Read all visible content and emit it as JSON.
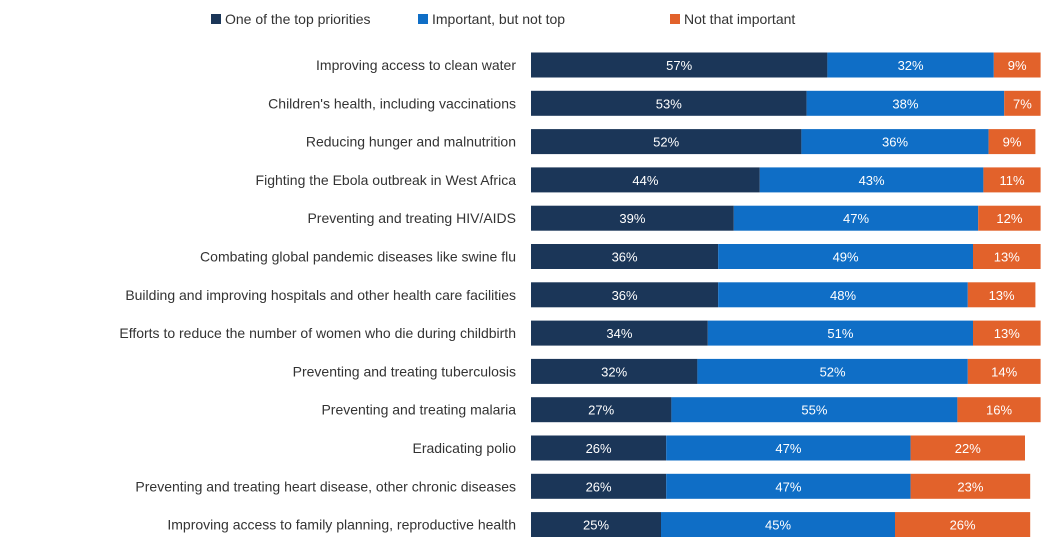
{
  "chart_data": {
    "type": "bar",
    "orientation": "horizontal",
    "stacked": true,
    "legend_position": "top",
    "grid": false,
    "xlim": [
      0,
      100
    ],
    "categories": [
      "Improving access to clean water",
      "Children's health, including vaccinations",
      "Reducing hunger and malnutrition",
      "Fighting the Ebola outbreak in West Africa",
      "Preventing and treating HIV/AIDS",
      "Combating global pandemic diseases like swine flu",
      "Building and improving hospitals and other health care facilities",
      "Efforts to reduce the number of women who die during childbirth",
      "Preventing and treating tuberculosis",
      "Preventing and treating malaria",
      "Eradicating polio",
      "Preventing and treating heart disease, other chronic diseases",
      "Improving access to family planning, reproductive health"
    ],
    "series": [
      {
        "name": "One of the top priorities",
        "color": "#1b3658",
        "values": [
          57,
          53,
          52,
          44,
          39,
          36,
          36,
          34,
          32,
          27,
          26,
          26,
          25
        ]
      },
      {
        "name": "Important, but not top",
        "color": "#0f6ec6",
        "values": [
          32,
          38,
          36,
          43,
          47,
          49,
          48,
          51,
          52,
          55,
          47,
          47,
          45
        ]
      },
      {
        "name": "Not that important",
        "color": "#e2622b",
        "values": [
          9,
          7,
          9,
          11,
          12,
          13,
          13,
          13,
          14,
          16,
          22,
          23,
          26
        ]
      }
    ],
    "value_suffix": "%"
  }
}
